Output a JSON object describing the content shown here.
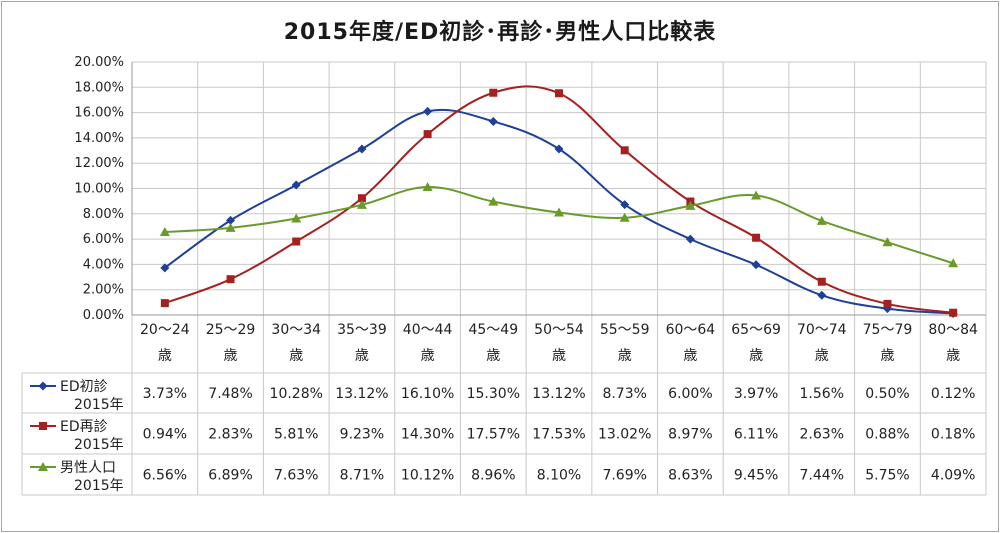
{
  "chart_data": {
    "type": "line",
    "title": "2015年度/ED初診･再診･男性人口比較表",
    "ylim": [
      0,
      20
    ],
    "y_tick_labels": [
      "0.00%",
      "2.00%",
      "4.00%",
      "6.00%",
      "8.00%",
      "10.00%",
      "12.00%",
      "14.00%",
      "16.00%",
      "18.00%",
      "20.00%"
    ],
    "categories": [
      {
        "range": "20～24",
        "unit": "歳"
      },
      {
        "range": "25～29",
        "unit": "歳"
      },
      {
        "range": "30～34",
        "unit": "歳"
      },
      {
        "range": "35～39",
        "unit": "歳"
      },
      {
        "range": "40～44",
        "unit": "歳"
      },
      {
        "range": "45～49",
        "unit": "歳"
      },
      {
        "range": "50～54",
        "unit": "歳"
      },
      {
        "range": "55～59",
        "unit": "歳"
      },
      {
        "range": "60～64",
        "unit": "歳"
      },
      {
        "range": "65～69",
        "unit": "歳"
      },
      {
        "range": "70～74",
        "unit": "歳"
      },
      {
        "range": "75～79",
        "unit": "歳"
      },
      {
        "range": "80～84",
        "unit": "歳"
      }
    ],
    "series": [
      {
        "name": "ED初診",
        "name_line2": "2015年",
        "color": "#1f3f98",
        "marker": "diamond",
        "values": [
          3.73,
          7.48,
          10.28,
          13.12,
          16.1,
          15.3,
          13.12,
          8.73,
          6.0,
          3.97,
          1.56,
          0.5,
          0.12
        ],
        "labels": [
          "3.73%",
          "7.48%",
          "10.28%",
          "13.12%",
          "16.10%",
          "15.30%",
          "13.12%",
          "8.73%",
          "6.00%",
          "3.97%",
          "1.56%",
          "0.50%",
          "0.12%"
        ]
      },
      {
        "name": "ED再診",
        "name_line2": "2015年",
        "color": "#a5201e",
        "marker": "square",
        "values": [
          0.94,
          2.83,
          5.81,
          9.23,
          14.3,
          17.57,
          17.53,
          13.02,
          8.97,
          6.11,
          2.63,
          0.88,
          0.18
        ],
        "labels": [
          "0.94%",
          "2.83%",
          "5.81%",
          "9.23%",
          "14.30%",
          "17.57%",
          "17.53%",
          "13.02%",
          "8.97%",
          "6.11%",
          "2.63%",
          "0.88%",
          "0.18%"
        ]
      },
      {
        "name": "男性人口",
        "name_line2": "2015年",
        "color": "#6a9a2a",
        "marker": "triangle",
        "values": [
          6.56,
          6.89,
          7.63,
          8.71,
          10.12,
          8.96,
          8.1,
          7.69,
          8.63,
          9.45,
          7.44,
          5.75,
          4.09
        ],
        "labels": [
          "6.56%",
          "6.89%",
          "7.63%",
          "8.71%",
          "10.12%",
          "8.96%",
          "8.10%",
          "7.69%",
          "8.63%",
          "9.45%",
          "7.44%",
          "5.75%",
          "4.09%"
        ]
      }
    ]
  }
}
